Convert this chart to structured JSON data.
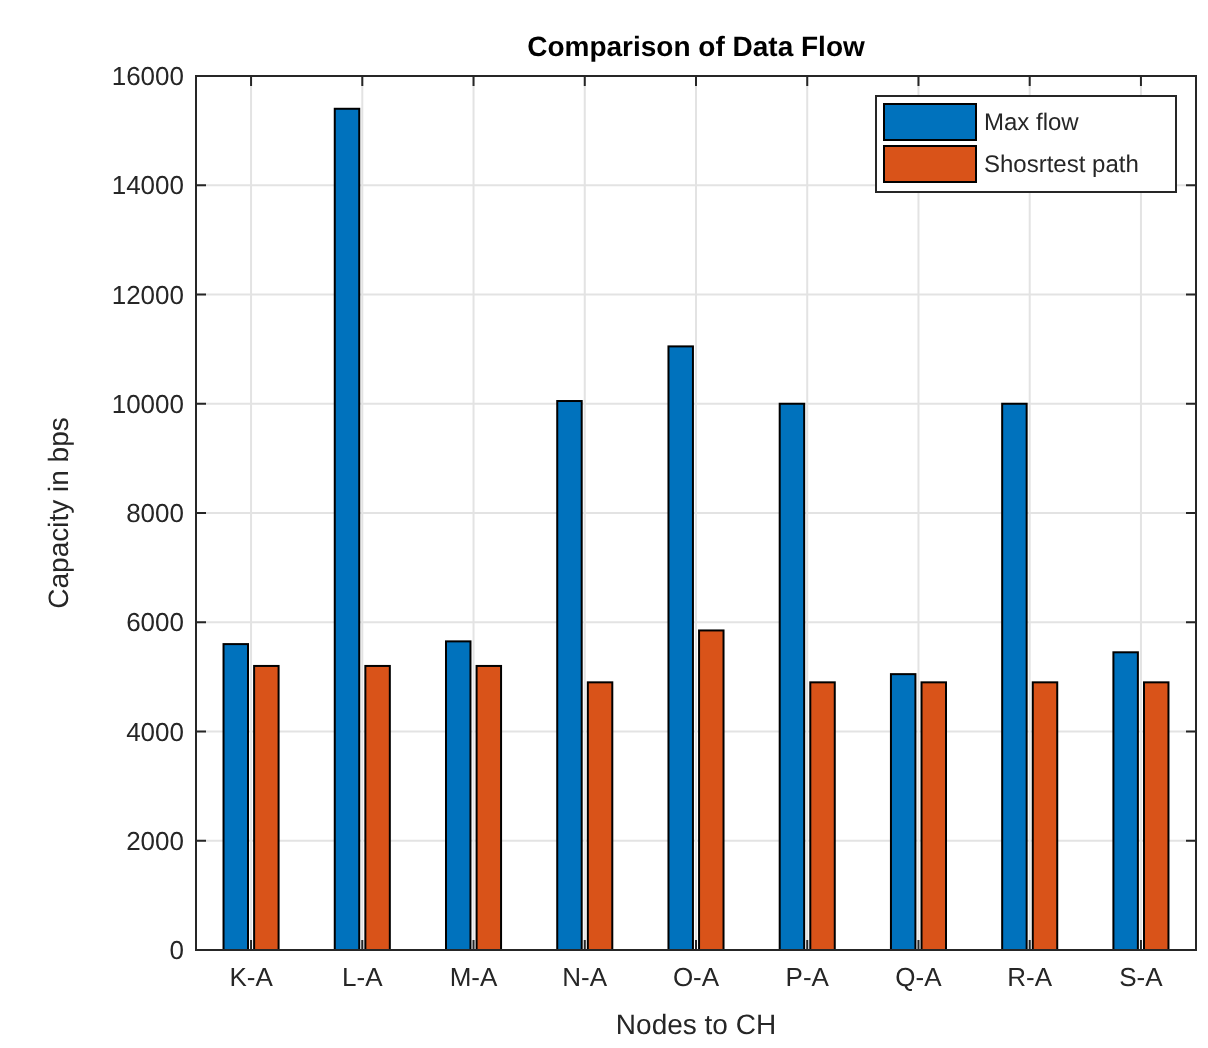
{
  "chart_data": {
    "type": "bar",
    "title": "Comparison of Data Flow",
    "xlabel": "Nodes to CH",
    "ylabel": "Capacity in bps",
    "categories": [
      "K-A",
      "L-A",
      "M-A",
      "N-A",
      "O-A",
      "P-A",
      "Q-A",
      "R-A",
      "S-A"
    ],
    "series": [
      {
        "name": "Max flow",
        "color": "#0072bd",
        "values": [
          5600,
          15400,
          5650,
          10050,
          11050,
          10000,
          5050,
          10000,
          5450
        ]
      },
      {
        "name": "Shosrtest path",
        "color": "#d95319",
        "values": [
          5200,
          5200,
          5200,
          4900,
          5850,
          4900,
          4900,
          4900,
          4900
        ]
      }
    ],
    "ylim": [
      0,
      16000
    ],
    "yticks": [
      0,
      2000,
      4000,
      6000,
      8000,
      10000,
      12000,
      14000,
      16000
    ],
    "grid": true,
    "legend": "top right"
  }
}
